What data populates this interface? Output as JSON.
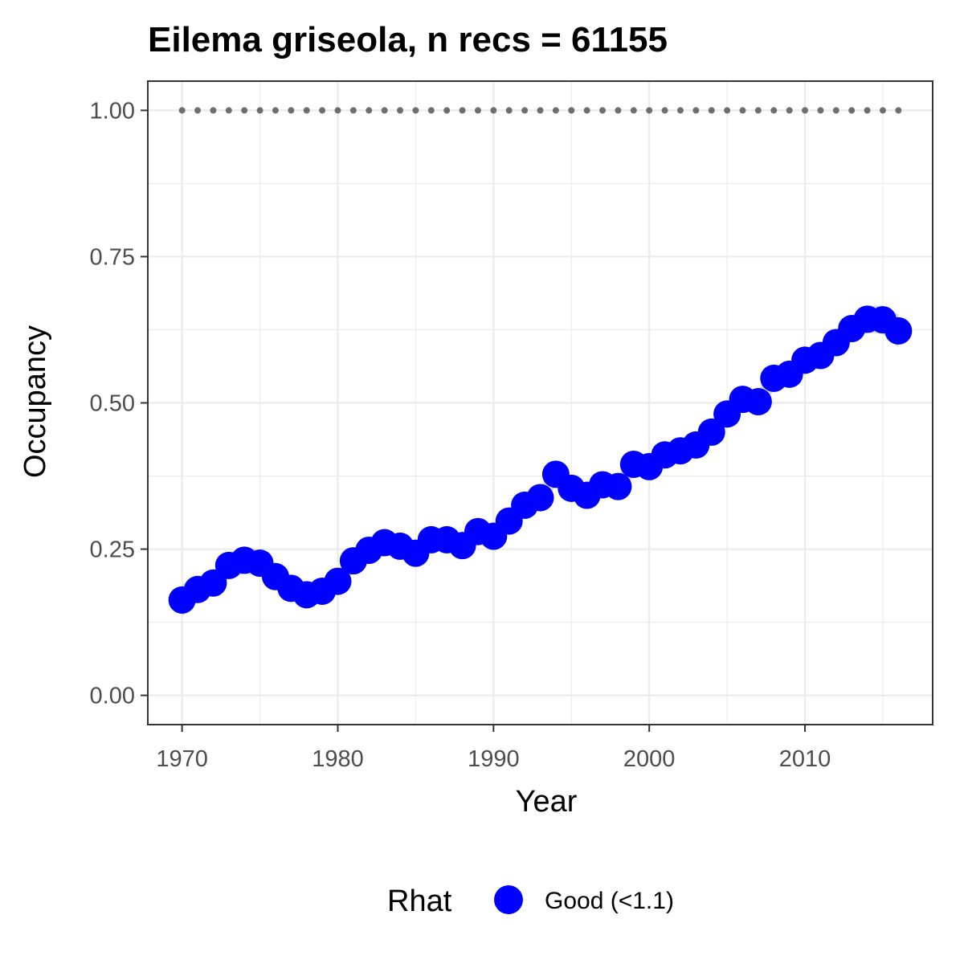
{
  "chart_data": {
    "type": "line",
    "title": "Eilema griseola, n recs = 61155",
    "xlabel": "Year",
    "ylabel": "Occupancy",
    "xlim": [
      1967.8,
      2018.2
    ],
    "ylim": [
      -0.05,
      1.05
    ],
    "x_ticks": [
      1970,
      1980,
      1990,
      2000,
      2010
    ],
    "x_tick_labels": [
      "1970",
      "1980",
      "1990",
      "2000",
      "2010"
    ],
    "y_ticks": [
      0,
      0.25,
      0.5,
      0.75,
      1.0
    ],
    "y_tick_labels": [
      "0.00",
      "0.25",
      "0.50",
      "0.75",
      "1.00"
    ],
    "grid": true,
    "legend_position": "bottom",
    "legend": {
      "title": "Rhat",
      "entries": [
        {
          "label": "Good (<1.1)",
          "color": "#0000ff"
        }
      ]
    },
    "colors": {
      "points": "#0000ff",
      "ribbon": "#d3d3d3",
      "reference_dots": "#6e6e6e",
      "panel_border": "#333333",
      "grid": "#ebebeb"
    },
    "x": [
      1970,
      1971,
      1972,
      1973,
      1974,
      1975,
      1976,
      1977,
      1978,
      1979,
      1980,
      1981,
      1982,
      1983,
      1984,
      1985,
      1986,
      1987,
      1988,
      1989,
      1990,
      1991,
      1992,
      1993,
      1994,
      1995,
      1996,
      1997,
      1998,
      1999,
      2000,
      2001,
      2002,
      2003,
      2004,
      2005,
      2006,
      2007,
      2008,
      2009,
      2010,
      2011,
      2012,
      2013,
      2014,
      2015,
      2016
    ],
    "series": [
      {
        "name": "Good (<1.1)",
        "values": [
          0.163,
          0.181,
          0.192,
          0.222,
          0.231,
          0.226,
          0.203,
          0.183,
          0.172,
          0.178,
          0.195,
          0.23,
          0.248,
          0.261,
          0.255,
          0.243,
          0.266,
          0.266,
          0.256,
          0.28,
          0.272,
          0.298,
          0.325,
          0.338,
          0.378,
          0.354,
          0.342,
          0.36,
          0.357,
          0.395,
          0.391,
          0.411,
          0.418,
          0.428,
          0.45,
          0.481,
          0.506,
          0.502,
          0.542,
          0.549,
          0.573,
          0.581,
          0.603,
          0.627,
          0.643,
          0.642,
          0.623
        ],
        "lower": [
          0.135,
          0.16,
          0.172,
          0.2,
          0.208,
          0.204,
          0.183,
          0.165,
          0.155,
          0.16,
          0.177,
          0.212,
          0.229,
          0.242,
          0.236,
          0.225,
          0.247,
          0.248,
          0.238,
          0.262,
          0.254,
          0.28,
          0.306,
          0.32,
          0.358,
          0.335,
          0.323,
          0.341,
          0.338,
          0.375,
          0.371,
          0.391,
          0.398,
          0.408,
          0.43,
          0.461,
          0.486,
          0.482,
          0.522,
          0.529,
          0.553,
          0.56,
          0.582,
          0.605,
          0.62,
          0.618,
          0.595
        ],
        "upper": [
          0.19,
          0.2,
          0.212,
          0.244,
          0.254,
          0.248,
          0.223,
          0.201,
          0.189,
          0.196,
          0.213,
          0.248,
          0.267,
          0.28,
          0.274,
          0.261,
          0.285,
          0.284,
          0.274,
          0.298,
          0.29,
          0.316,
          0.344,
          0.356,
          0.398,
          0.373,
          0.361,
          0.379,
          0.376,
          0.415,
          0.411,
          0.431,
          0.438,
          0.448,
          0.47,
          0.501,
          0.526,
          0.522,
          0.562,
          0.569,
          0.593,
          0.602,
          0.624,
          0.649,
          0.666,
          0.666,
          0.651
        ]
      }
    ],
    "reference_line": {
      "y": 1.0,
      "style": "dotted"
    }
  }
}
